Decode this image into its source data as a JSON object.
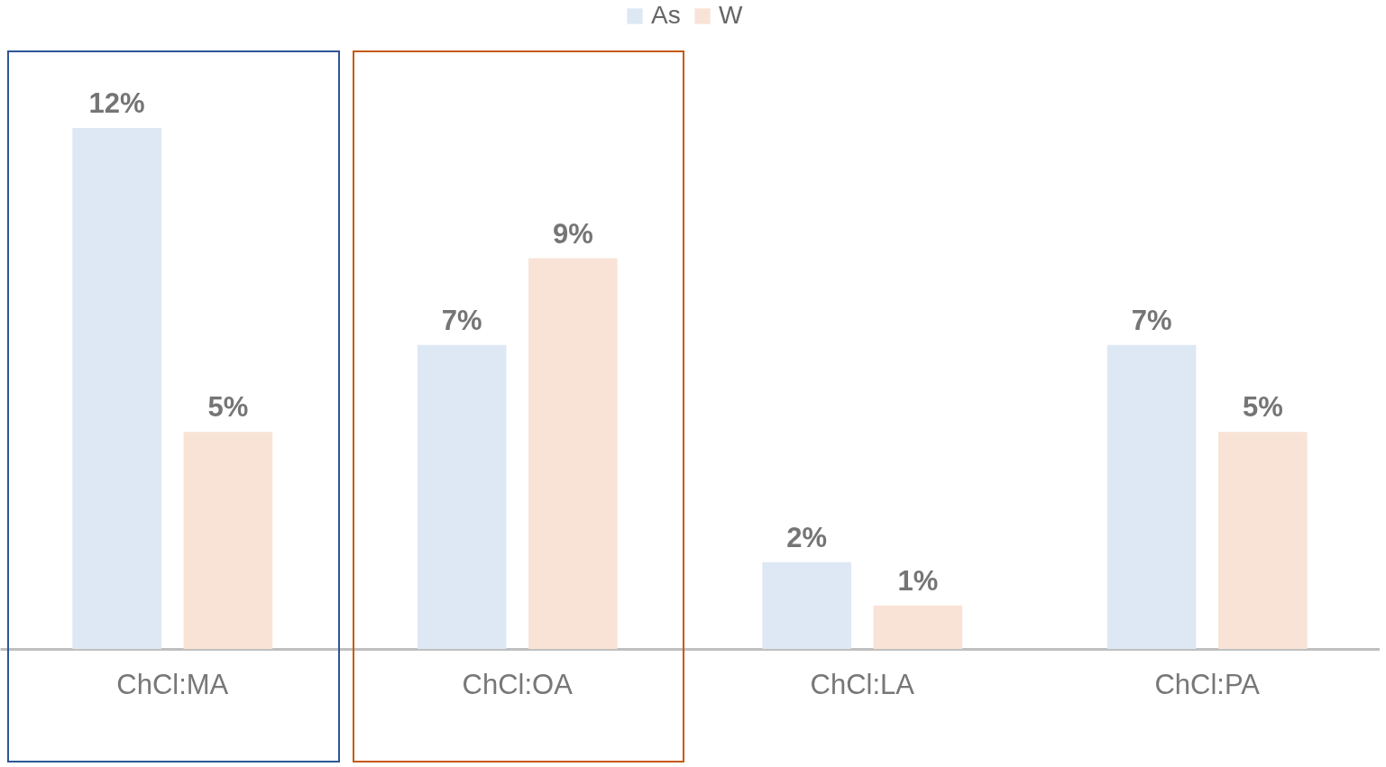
{
  "chart_data": {
    "type": "bar",
    "categories": [
      "ChCl:MA",
      "ChCl:OA",
      "ChCl:LA",
      "ChCl:PA"
    ],
    "series": [
      {
        "name": "As",
        "color": "#dde8f4",
        "values": [
          12,
          7,
          2,
          7
        ],
        "value_labels": [
          "12%",
          "7%",
          "2%",
          "7%"
        ]
      },
      {
        "name": "W",
        "color": "#f9e3d6",
        "values": [
          5,
          9,
          1,
          5
        ],
        "value_labels": [
          "5%",
          "9%",
          "1%",
          "5%"
        ]
      }
    ],
    "legend": "top",
    "grid": false
  }
}
